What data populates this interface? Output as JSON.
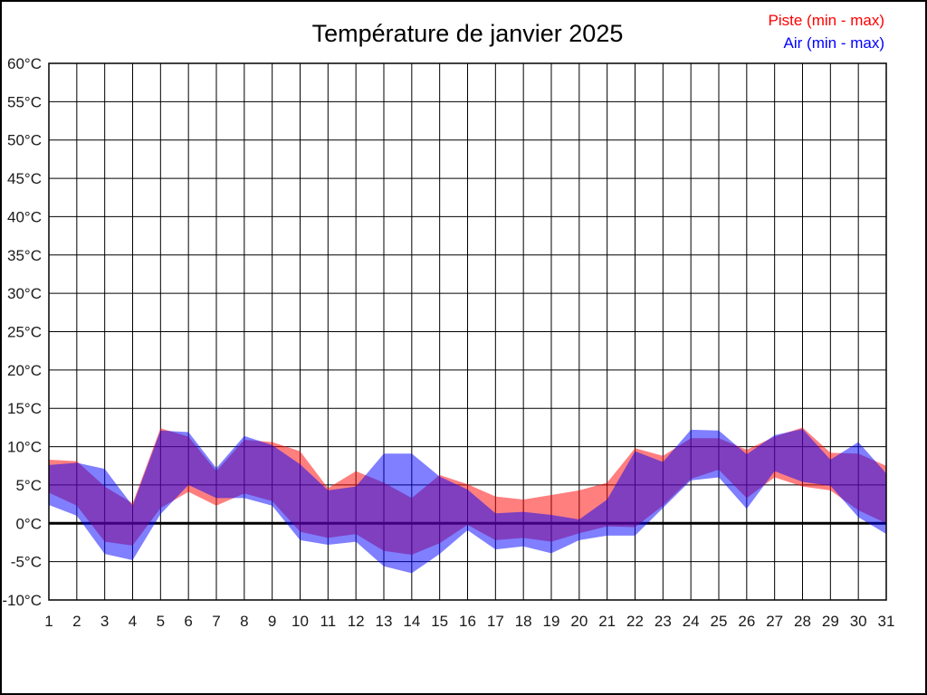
{
  "title": "Température de janvier 2025",
  "legend": {
    "items": [
      {
        "label": "Piste (min - max)",
        "color": "#ff0000"
      },
      {
        "label": "Air (min - max)",
        "color": "#0000ff"
      }
    ]
  },
  "chart_data": {
    "type": "area",
    "title": "Température de janvier 2025",
    "xlabel": "",
    "ylabel": "",
    "x": [
      1,
      2,
      3,
      4,
      5,
      6,
      7,
      8,
      9,
      10,
      11,
      12,
      13,
      14,
      15,
      16,
      17,
      18,
      19,
      20,
      21,
      22,
      23,
      24,
      25,
      26,
      27,
      28,
      29,
      30,
      31
    ],
    "x_tick_labels": [
      "1",
      "2",
      "3",
      "4",
      "5",
      "6",
      "7",
      "8",
      "9",
      "10",
      "11",
      "12",
      "13",
      "14",
      "15",
      "16",
      "17",
      "18",
      "19",
      "20",
      "21",
      "22",
      "23",
      "24",
      "25",
      "26",
      "27",
      "28",
      "29",
      "30",
      "31"
    ],
    "ylim": [
      -10,
      60
    ],
    "ytick_step": 5,
    "y_tick_labels": [
      "-10°C",
      "-5°C",
      "0°C",
      "5°C",
      "10°C",
      "15°C",
      "20°C",
      "25°C",
      "30°C",
      "35°C",
      "40°C",
      "45°C",
      "50°C",
      "55°C",
      "60°C"
    ],
    "grid": true,
    "zero_line": true,
    "legend_position": "top-right",
    "series": [
      {
        "name": "Piste (min - max)",
        "fill": "rgba(255,0,0,0.5)",
        "legend_color": "#ff0000",
        "min": [
          4.0,
          2.3,
          -2.4,
          -2.9,
          2.0,
          4.1,
          2.3,
          3.9,
          2.9,
          -1.1,
          -1.9,
          -1.4,
          -3.6,
          -4.1,
          -2.6,
          -0.2,
          -2.2,
          -1.9,
          -2.4,
          -1.3,
          -0.4,
          -0.5,
          2.3,
          5.8,
          7.0,
          3.3,
          6.0,
          4.8,
          4.3,
          1.7,
          0.0
        ],
        "max": [
          8.3,
          8.1,
          4.8,
          2.6,
          12.4,
          11.3,
          6.8,
          10.9,
          10.6,
          9.4,
          4.6,
          6.8,
          5.3,
          3.3,
          6.3,
          5.1,
          3.5,
          3.1,
          3.7,
          4.3,
          5.3,
          9.8,
          8.8,
          11.1,
          11.1,
          9.6,
          11.3,
          12.5,
          9.2,
          9.1,
          7.5
        ]
      },
      {
        "name": "Air (min - max)",
        "fill": "rgba(0,0,255,0.5)",
        "legend_color": "#0000ff",
        "min": [
          2.4,
          1.0,
          -4.0,
          -4.8,
          1.2,
          5.0,
          3.3,
          3.3,
          2.3,
          -2.2,
          -2.8,
          -2.4,
          -5.6,
          -6.5,
          -4.0,
          -0.9,
          -3.4,
          -3.0,
          -3.9,
          -2.2,
          -1.6,
          -1.6,
          2.0,
          5.6,
          6.0,
          1.9,
          6.8,
          5.4,
          4.9,
          0.8,
          -1.4
        ],
        "max": [
          7.6,
          7.9,
          7.1,
          2.3,
          12.1,
          11.9,
          7.2,
          11.4,
          10.2,
          7.7,
          4.3,
          4.8,
          9.1,
          9.1,
          6.1,
          4.4,
          1.3,
          1.5,
          1.1,
          0.5,
          3.1,
          9.4,
          8.0,
          12.2,
          12.1,
          9.0,
          11.5,
          12.3,
          8.3,
          10.6,
          6.5
        ]
      }
    ],
    "styles": {
      "grid_color": "#000000",
      "border_color": "#000000",
      "zero_line_color": "#000000",
      "tick_label_color": "#1a1a1a"
    }
  }
}
